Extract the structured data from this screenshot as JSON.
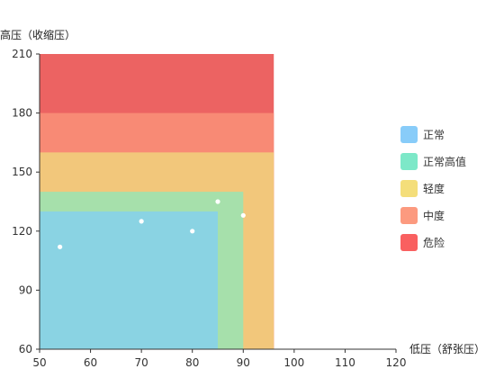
{
  "chart_data": {
    "type": "scatter",
    "y_axis_title": "高压（收缩压）",
    "x_axis_title": "低压（舒张压）",
    "xlim": [
      50,
      120
    ],
    "ylim": [
      60,
      210
    ],
    "x_ticks": [
      50,
      60,
      70,
      80,
      90,
      100,
      110,
      120
    ],
    "y_ticks": [
      60,
      90,
      120,
      150,
      180,
      210
    ],
    "zones": [
      {
        "name": "危险",
        "x_max": 96,
        "y_max": 210,
        "color": "#ec6362"
      },
      {
        "name": "中度",
        "x_max": 96,
        "y_max": 180,
        "color": "#f88a75"
      },
      {
        "name": "轻度",
        "x_max": 96,
        "y_max": 160,
        "color": "#f2c77b"
      },
      {
        "name": "正常高值",
        "x_max": 90,
        "y_max": 140,
        "color": "#a6e0ab"
      },
      {
        "name": "正常",
        "x_max": 85,
        "y_max": 130,
        "color": "#8ad3e3"
      }
    ],
    "legend": [
      {
        "name": "正常",
        "color": "#88ccf9"
      },
      {
        "name": "正常高值",
        "color": "#7de8c8"
      },
      {
        "name": "轻度",
        "color": "#f4de7a"
      },
      {
        "name": "中度",
        "color": "#fc9a7f"
      },
      {
        "name": "危险",
        "color": "#f96060"
      }
    ],
    "points": [
      {
        "x": 54,
        "y": 112
      },
      {
        "x": 70,
        "y": 125
      },
      {
        "x": 80,
        "y": 120
      },
      {
        "x": 85,
        "y": 135
      },
      {
        "x": 90,
        "y": 128
      }
    ],
    "point_color": "#ffffff",
    "axis_color": "#333333",
    "legend_position": "right"
  }
}
